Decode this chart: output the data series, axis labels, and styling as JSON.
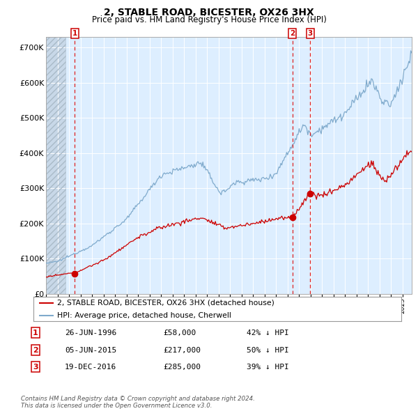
{
  "title": "2, STABLE ROAD, BICESTER, OX26 3HX",
  "subtitle": "Price paid vs. HM Land Registry's House Price Index (HPI)",
  "hpi_color": "#7faacc",
  "price_color": "#cc0000",
  "dashed_color": "#dd2222",
  "bg_color": "#ddeeff",
  "ylim": [
    0,
    730000
  ],
  "yticks": [
    0,
    100000,
    200000,
    300000,
    400000,
    500000,
    600000,
    700000
  ],
  "ytick_labels": [
    "£0",
    "£100K",
    "£200K",
    "£300K",
    "£400K",
    "£500K",
    "£600K",
    "£700K"
  ],
  "xlim_start": 1994.0,
  "xlim_end": 2025.8,
  "hatch_end": 1995.7,
  "transactions": [
    {
      "num": 1,
      "date": "26-JUN-1996",
      "year": 1996.49,
      "price": 58000,
      "hpi_note": "42% ↓ HPI"
    },
    {
      "num": 2,
      "date": "05-JUN-2015",
      "year": 2015.43,
      "price": 217000,
      "hpi_note": "50% ↓ HPI"
    },
    {
      "num": 3,
      "date": "19-DEC-2016",
      "year": 2016.97,
      "price": 285000,
      "hpi_note": "39% ↓ HPI"
    }
  ],
  "legend_entry1": "2, STABLE ROAD, BICESTER, OX26 3HX (detached house)",
  "legend_entry2": "HPI: Average price, detached house, Cherwell",
  "footnote": "Contains HM Land Registry data © Crown copyright and database right 2024.\nThis data is licensed under the Open Government Licence v3.0."
}
